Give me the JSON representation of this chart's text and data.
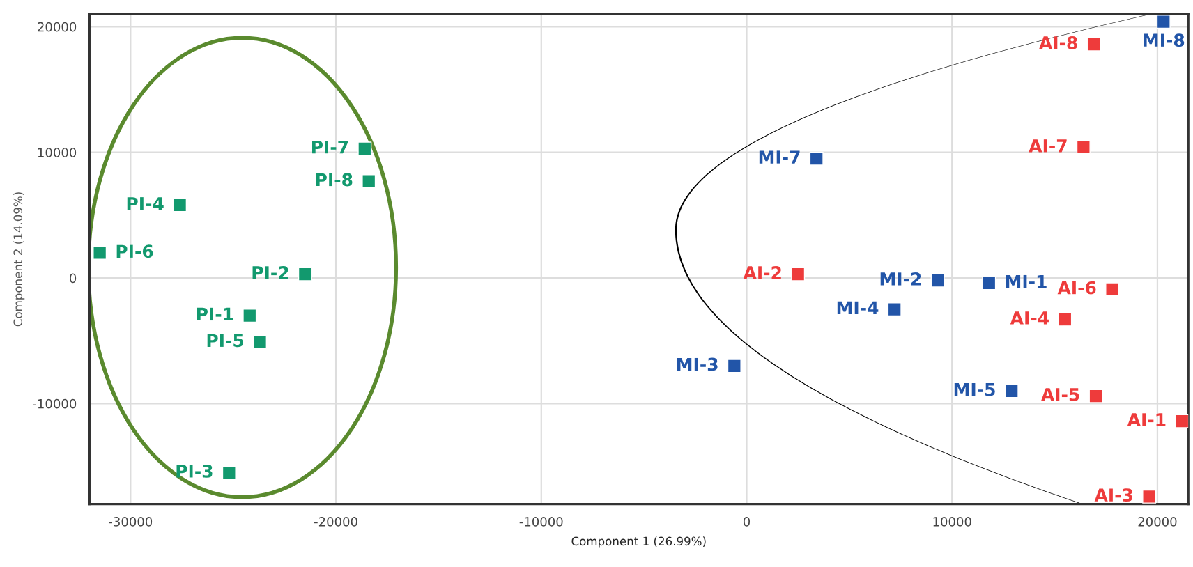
{
  "chart_data": {
    "type": "scatter",
    "xlabel": "Component 1 (26.99%)",
    "ylabel": "Component 2 (14.09%)",
    "xlim": [
      -32000,
      21500
    ],
    "ylim": [
      -18000,
      21000
    ],
    "xticks": [
      -30000,
      -20000,
      -10000,
      0,
      10000,
      20000
    ],
    "yticks": [
      -10000,
      0,
      10000,
      20000
    ],
    "grid": true,
    "marker": "square",
    "series": [
      {
        "color": "#12996e",
        "x": [
          -24200,
          -21500,
          -25200,
          -27600,
          -23700,
          -31500,
          -18600,
          -18400
        ],
        "values": [
          -3000,
          300,
          -15500,
          5800,
          -5100,
          2000,
          10300,
          7700
        ]
      },
      {
        "color": "#2255a8",
        "x": [
          11800,
          9300,
          -600,
          7200,
          12900,
          3400,
          20300
        ],
        "values": [
          -400,
          -200,
          -7000,
          -2500,
          -9000,
          9500,
          20400
        ]
      },
      {
        "color": "#ee3b3b",
        "x": [
          21200,
          2500,
          19600,
          15500,
          17000,
          17800,
          16400,
          16900
        ],
        "values": [
          -11400,
          300,
          -17400,
          -3300,
          -9400,
          -900,
          10400,
          18600
        ]
      }
    ],
    "annotations": [
      {
        "text": "PI-1",
        "x": -24200,
        "y": -3000
      },
      {
        "text": "PI-2",
        "x": -21500,
        "y": 300
      },
      {
        "text": "PI-3",
        "x": -25200,
        "y": -15500
      },
      {
        "text": "PI-4",
        "x": -27600,
        "y": 5800
      },
      {
        "text": "PI-5",
        "x": -23700,
        "y": -5100
      },
      {
        "text": "PI-6",
        "x": -31500,
        "y": 2000
      },
      {
        "text": "PI-7",
        "x": -18600,
        "y": 10300
      },
      {
        "text": "PI-8",
        "x": -18400,
        "y": 7700
      },
      {
        "text": "MI-1",
        "x": 11800,
        "y": -400
      },
      {
        "text": "MI-2",
        "x": 9300,
        "y": -200
      },
      {
        "text": "MI-3",
        "x": -600,
        "y": -7000
      },
      {
        "text": "MI-4",
        "x": 7200,
        "y": -2500
      },
      {
        "text": "MI-5",
        "x": 12900,
        "y": -9000
      },
      {
        "text": "MI-7",
        "x": 3400,
        "y": 9500
      },
      {
        "text": "MI-8",
        "x": 20300,
        "y": 20400
      },
      {
        "text": "AI-1",
        "x": 21200,
        "y": -11400
      },
      {
        "text": "AI-2",
        "x": 2500,
        "y": 300
      },
      {
        "text": "AI-3",
        "x": 19600,
        "y": -17400
      },
      {
        "text": "AI-4",
        "x": 15500,
        "y": -3300
      },
      {
        "text": "AI-5",
        "x": 17000,
        "y": -9400
      },
      {
        "text": "AI-6",
        "x": 17800,
        "y": -900
      },
      {
        "text": "AI-7",
        "x": 16400,
        "y": 10400
      },
      {
        "text": "AI-8",
        "x": 16900,
        "y": 18600
      }
    ]
  }
}
